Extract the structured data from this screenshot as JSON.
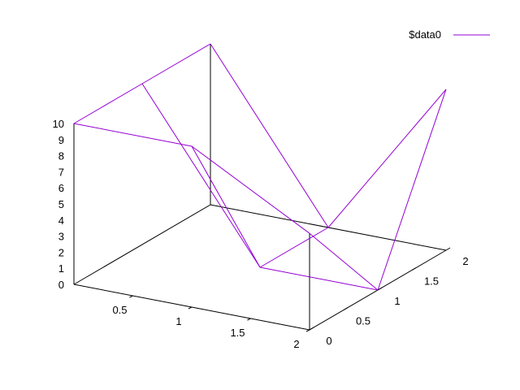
{
  "chart_data": {
    "type": "surface3d",
    "legend": {
      "entries": [
        {
          "label": "$data0",
          "color": "#9400d3"
        }
      ],
      "position": "top-right"
    },
    "x": {
      "range": [
        0,
        2
      ],
      "ticks": [
        "0.5",
        "1",
        "1.5",
        "2"
      ]
    },
    "y": {
      "range": [
        0,
        2
      ],
      "ticks": [
        "0",
        "0.5",
        "1",
        "1.5",
        "2"
      ]
    },
    "z": {
      "range": [
        0,
        10
      ],
      "ticks": [
        "0",
        "1",
        "2",
        "3",
        "4",
        "5",
        "6",
        "7",
        "8",
        "9",
        "10"
      ]
    },
    "grid": false,
    "series": [
      {
        "name": "$data0",
        "color": "#9400d3",
        "x_values": [
          0,
          1,
          2
        ],
        "y_values": [
          0,
          1,
          2
        ],
        "z_matrix": [
          [
            10,
            10,
            10
          ],
          [
            10,
            0,
            0
          ],
          [
            6,
            0,
            10
          ]
        ]
      }
    ]
  }
}
